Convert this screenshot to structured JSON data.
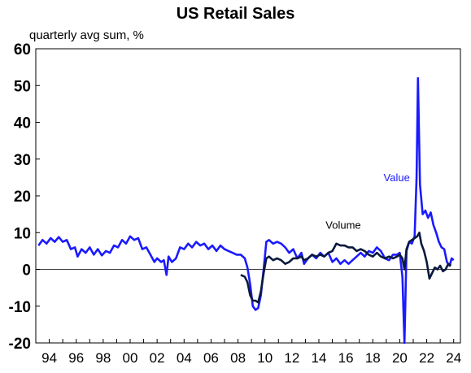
{
  "chart_data": {
    "type": "line",
    "title": "US Retail Sales",
    "subtitle": "quarterly avg sum, %",
    "xlim": [
      1993.0,
      2024.5
    ],
    "ylim": [
      -20,
      60
    ],
    "yticks": [
      -20,
      -10,
      0,
      10,
      20,
      30,
      40,
      50,
      60
    ],
    "xticks": [
      {
        "value": 1994,
        "label": "94"
      },
      {
        "value": 1996,
        "label": "96"
      },
      {
        "value": 1998,
        "label": "98"
      },
      {
        "value": 2000,
        "label": "00"
      },
      {
        "value": 2002,
        "label": "02"
      },
      {
        "value": 2004,
        "label": "04"
      },
      {
        "value": 2006,
        "label": "06"
      },
      {
        "value": 2008,
        "label": "08"
      },
      {
        "value": 2010,
        "label": "10"
      },
      {
        "value": 2012,
        "label": "12"
      },
      {
        "value": 2014,
        "label": "14"
      },
      {
        "value": 2016,
        "label": "16"
      },
      {
        "value": 2018,
        "label": "18"
      },
      {
        "value": 2020,
        "label": "20"
      },
      {
        "value": 2022,
        "label": "22"
      },
      {
        "value": 2024,
        "label": "24"
      }
    ],
    "zero_line": true,
    "grid": false,
    "series": [
      {
        "name": "Value",
        "color": "#1a1aff",
        "points": [
          [
            1993.2,
            6.5
          ],
          [
            1993.5,
            8.0
          ],
          [
            1993.8,
            7.0
          ],
          [
            1994.1,
            8.5
          ],
          [
            1994.4,
            7.5
          ],
          [
            1994.7,
            8.8
          ],
          [
            1995.0,
            7.5
          ],
          [
            1995.3,
            8.0
          ],
          [
            1995.6,
            5.5
          ],
          [
            1995.9,
            6.0
          ],
          [
            1996.1,
            3.5
          ],
          [
            1996.4,
            5.5
          ],
          [
            1996.7,
            4.5
          ],
          [
            1997.0,
            6.0
          ],
          [
            1997.3,
            4.0
          ],
          [
            1997.6,
            5.5
          ],
          [
            1997.9,
            3.8
          ],
          [
            1998.2,
            5.0
          ],
          [
            1998.5,
            4.5
          ],
          [
            1998.8,
            6.5
          ],
          [
            1999.1,
            6.0
          ],
          [
            1999.4,
            8.0
          ],
          [
            1999.7,
            7.0
          ],
          [
            2000.0,
            9.0
          ],
          [
            2000.3,
            8.0
          ],
          [
            2000.6,
            8.5
          ],
          [
            2000.9,
            5.5
          ],
          [
            2001.2,
            6.0
          ],
          [
            2001.5,
            4.0
          ],
          [
            2001.8,
            2.0
          ],
          [
            2002.0,
            3.0
          ],
          [
            2002.3,
            2.0
          ],
          [
            2002.5,
            2.5
          ],
          [
            2002.7,
            -1.5
          ],
          [
            2002.85,
            3.5
          ],
          [
            2003.1,
            2.0
          ],
          [
            2003.4,
            3.0
          ],
          [
            2003.7,
            6.0
          ],
          [
            2004.0,
            5.5
          ],
          [
            2004.3,
            7.0
          ],
          [
            2004.6,
            6.0
          ],
          [
            2004.9,
            7.5
          ],
          [
            2005.2,
            6.5
          ],
          [
            2005.5,
            7.0
          ],
          [
            2005.8,
            5.5
          ],
          [
            2006.1,
            6.5
          ],
          [
            2006.4,
            5.0
          ],
          [
            2006.7,
            6.5
          ],
          [
            2007.0,
            5.5
          ],
          [
            2007.3,
            5.0
          ],
          [
            2007.6,
            4.5
          ],
          [
            2007.9,
            4.0
          ],
          [
            2008.2,
            4.0
          ],
          [
            2008.5,
            3.0
          ],
          [
            2008.7,
            0.5
          ],
          [
            2008.9,
            -4.0
          ],
          [
            2009.1,
            -10.0
          ],
          [
            2009.3,
            -11.0
          ],
          [
            2009.5,
            -10.5
          ],
          [
            2009.7,
            -7.0
          ],
          [
            2009.9,
            0.0
          ],
          [
            2010.1,
            7.5
          ],
          [
            2010.3,
            8.0
          ],
          [
            2010.6,
            7.0
          ],
          [
            2010.9,
            7.5
          ],
          [
            2011.2,
            7.0
          ],
          [
            2011.5,
            6.0
          ],
          [
            2011.8,
            4.5
          ],
          [
            2012.1,
            5.5
          ],
          [
            2012.4,
            3.0
          ],
          [
            2012.7,
            4.5
          ],
          [
            2012.9,
            1.5
          ],
          [
            2013.2,
            3.0
          ],
          [
            2013.5,
            4.0
          ],
          [
            2013.8,
            3.0
          ],
          [
            2014.1,
            4.5
          ],
          [
            2014.4,
            3.5
          ],
          [
            2014.7,
            4.5
          ],
          [
            2015.0,
            2.0
          ],
          [
            2015.3,
            3.0
          ],
          [
            2015.6,
            1.5
          ],
          [
            2015.9,
            2.5
          ],
          [
            2016.2,
            1.5
          ],
          [
            2016.5,
            2.5
          ],
          [
            2016.8,
            3.5
          ],
          [
            2017.1,
            4.5
          ],
          [
            2017.4,
            3.5
          ],
          [
            2017.7,
            5.0
          ],
          [
            2018.0,
            4.5
          ],
          [
            2018.3,
            6.0
          ],
          [
            2018.6,
            5.0
          ],
          [
            2018.9,
            3.0
          ],
          [
            2019.2,
            2.5
          ],
          [
            2019.5,
            4.0
          ],
          [
            2019.8,
            4.0
          ],
          [
            2020.0,
            4.5
          ],
          [
            2020.2,
            -2.0
          ],
          [
            2020.35,
            -20.0
          ],
          [
            2020.5,
            5.0
          ],
          [
            2020.7,
            7.5
          ],
          [
            2020.9,
            7.0
          ],
          [
            2021.1,
            9.0
          ],
          [
            2021.25,
            25.0
          ],
          [
            2021.35,
            52.0
          ],
          [
            2021.5,
            23.0
          ],
          [
            2021.7,
            15.0
          ],
          [
            2021.9,
            16.0
          ],
          [
            2022.1,
            14.0
          ],
          [
            2022.3,
            15.5
          ],
          [
            2022.5,
            12.0
          ],
          [
            2022.7,
            10.0
          ],
          [
            2022.9,
            7.5
          ],
          [
            2023.1,
            6.0
          ],
          [
            2023.3,
            5.5
          ],
          [
            2023.5,
            2.0
          ],
          [
            2023.7,
            1.0
          ],
          [
            2023.85,
            3.0
          ],
          [
            2024.0,
            2.5
          ]
        ]
      },
      {
        "name": "Volume",
        "color": "#0a1a3d",
        "points": [
          [
            2008.2,
            -1.5
          ],
          [
            2008.5,
            -2.0
          ],
          [
            2008.7,
            -3.5
          ],
          [
            2008.9,
            -7.0
          ],
          [
            2009.1,
            -8.5
          ],
          [
            2009.3,
            -8.5
          ],
          [
            2009.5,
            -9.0
          ],
          [
            2009.7,
            -6.0
          ],
          [
            2009.9,
            -1.0
          ],
          [
            2010.1,
            3.0
          ],
          [
            2010.3,
            3.5
          ],
          [
            2010.6,
            2.5
          ],
          [
            2010.9,
            3.0
          ],
          [
            2011.2,
            2.5
          ],
          [
            2011.5,
            1.5
          ],
          [
            2011.8,
            2.0
          ],
          [
            2012.1,
            3.0
          ],
          [
            2012.4,
            3.0
          ],
          [
            2012.7,
            3.5
          ],
          [
            2012.9,
            2.5
          ],
          [
            2013.2,
            3.0
          ],
          [
            2013.5,
            4.0
          ],
          [
            2013.8,
            3.5
          ],
          [
            2014.1,
            4.0
          ],
          [
            2014.4,
            3.5
          ],
          [
            2014.7,
            4.5
          ],
          [
            2015.0,
            5.0
          ],
          [
            2015.3,
            7.0
          ],
          [
            2015.6,
            6.5
          ],
          [
            2015.9,
            6.5
          ],
          [
            2016.2,
            6.0
          ],
          [
            2016.5,
            6.0
          ],
          [
            2016.8,
            5.0
          ],
          [
            2017.1,
            5.5
          ],
          [
            2017.4,
            5.0
          ],
          [
            2017.7,
            4.0
          ],
          [
            2018.0,
            3.5
          ],
          [
            2018.3,
            4.5
          ],
          [
            2018.6,
            3.5
          ],
          [
            2018.9,
            3.0
          ],
          [
            2019.2,
            3.5
          ],
          [
            2019.5,
            3.0
          ],
          [
            2019.8,
            3.5
          ],
          [
            2020.0,
            4.0
          ],
          [
            2020.2,
            3.0
          ],
          [
            2020.35,
            0.0
          ],
          [
            2020.5,
            5.5
          ],
          [
            2020.7,
            7.5
          ],
          [
            2020.9,
            8.0
          ],
          [
            2021.1,
            8.5
          ],
          [
            2021.3,
            9.0
          ],
          [
            2021.45,
            10.0
          ],
          [
            2021.6,
            7.0
          ],
          [
            2021.8,
            5.0
          ],
          [
            2022.0,
            2.0
          ],
          [
            2022.2,
            -2.5
          ],
          [
            2022.4,
            -1.0
          ],
          [
            2022.6,
            0.5
          ],
          [
            2022.8,
            0.0
          ],
          [
            2023.0,
            1.0
          ],
          [
            2023.2,
            -0.5
          ],
          [
            2023.4,
            0.0
          ],
          [
            2023.6,
            1.5
          ],
          [
            2023.8,
            1.0
          ]
        ]
      }
    ],
    "annotations": [
      {
        "text": "Value",
        "x": 2018.8,
        "y": 24.0,
        "color": "#1a1aff"
      },
      {
        "text": "Volume",
        "x": 2014.5,
        "y": 11.0,
        "color": "#000000"
      }
    ]
  }
}
